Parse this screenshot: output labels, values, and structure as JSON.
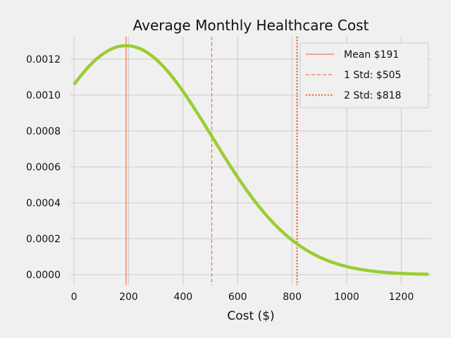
{
  "chart_data": {
    "type": "line",
    "title": "Average Monthly Healthcare Cost",
    "xlabel": "Cost ($)",
    "ylabel": "",
    "xlim": [
      -13,
      1310
    ],
    "ylim": [
      -5.85e-05,
      0.001325
    ],
    "xticks": [
      0,
      200,
      400,
      600,
      800,
      1000,
      1200
    ],
    "yticks": [
      0.0,
      0.0002,
      0.0004,
      0.0006,
      0.0008,
      0.001,
      0.0012
    ],
    "xtick_labels": [
      "0",
      "200",
      "400",
      "600",
      "800",
      "1000",
      "1200"
    ],
    "ytick_labels": [
      "0.0000",
      "0.0002",
      "0.0004",
      "0.0006",
      "0.0008",
      "0.0010",
      "0.0012"
    ],
    "grid": true,
    "legend_position": "top-right",
    "series": [
      {
        "name": "",
        "color": "#9acd32",
        "distribution": "normal",
        "mean": 191,
        "std": 313,
        "x_range": [
          0,
          1300
        ],
        "x": [
          0,
          100,
          191,
          200,
          300,
          400,
          500,
          600,
          700,
          800,
          900,
          1000,
          1100,
          1200,
          1300
        ],
        "y": [
          0.00106,
          0.00122,
          0.001275,
          0.001274,
          0.001198,
          0.001019,
          0.000784,
          0.000544,
          0.000342,
          0.000193,
          9.86e-05,
          4.54e-05,
          1.89e-05,
          7.1e-06,
          2.4e-06
        ]
      }
    ],
    "vlines": [
      {
        "x": 191,
        "style": "solid",
        "color": "#f07850",
        "label": "Mean $191"
      },
      {
        "x": 505,
        "style": "dashed",
        "color": "#f07850",
        "label": "1 Std: $505"
      },
      {
        "x": 818,
        "style": "dotted",
        "color": "#f07850",
        "label": "2 Std: $818"
      }
    ]
  }
}
